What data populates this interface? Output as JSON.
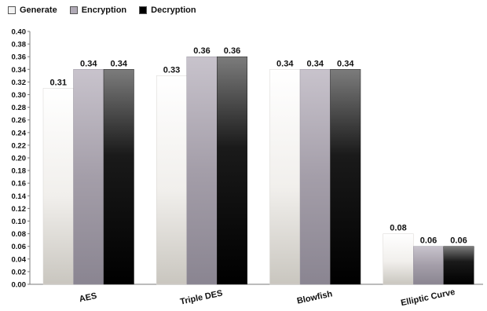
{
  "chart_data": {
    "type": "bar",
    "categories": [
      "AES",
      "Triple DES",
      "Blowfish",
      "Elliptic Curve"
    ],
    "series": [
      {
        "name": "Generate",
        "values": [
          0.31,
          0.33,
          0.34,
          0.08
        ]
      },
      {
        "name": "Encryption",
        "values": [
          0.34,
          0.36,
          0.34,
          0.06
        ]
      },
      {
        "name": "Decryption",
        "values": [
          0.34,
          0.36,
          0.34,
          0.06
        ]
      }
    ],
    "data_labels": [
      [
        "0.31",
        "0.34",
        "0.34"
      ],
      [
        "0.33",
        "0.36",
        "0.36"
      ],
      [
        "0.34",
        "0.34",
        "0.34"
      ],
      [
        "0.08",
        "0.06",
        "0.06"
      ]
    ],
    "yticks": [
      "0.00",
      "0.02",
      "0.04",
      "0.06",
      "0.08",
      "0.10",
      "0.12",
      "0.14",
      "0.16",
      "0.18",
      "0.20",
      "0.22",
      "0.24",
      "0.26",
      "0.28",
      "0.30",
      "0.32",
      "0.34",
      "0.36",
      "0.38",
      "0.40"
    ],
    "ylim": [
      0,
      0.4
    ],
    "title": "",
    "xlabel": "",
    "ylabel": "",
    "grid": false,
    "legend_position": "top-left",
    "colors": {
      "Generate": "#e8e6e1",
      "Encryption": "#a59fab",
      "Decryption": "#111111",
      "axis": "#888888",
      "text": "#111111"
    }
  }
}
